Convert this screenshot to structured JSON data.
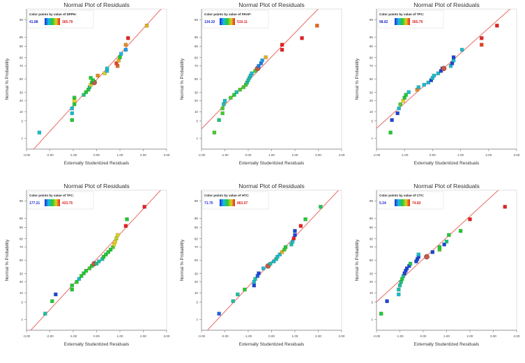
{
  "figure": {
    "panel_count": 6
  },
  "colors": {
    "fit_line": "#e8776f",
    "gradient": [
      "#1f2ad0",
      "#19b8f0",
      "#22c832",
      "#e0d020",
      "#e82020"
    ],
    "legend_min_text": "#1f2ad0",
    "legend_max_text": "#e02020",
    "axis": "#7a7a7a",
    "frame": "#cfcfcf",
    "highlight": "#c45a4a"
  },
  "chart_data": [
    {
      "type": "scatter",
      "title": "Normal Plot of Residuals",
      "xlabel": "Externally Studentized Residuals",
      "ylabel": "Normal % Probability",
      "legend_title": "Color points by value of DPPH:",
      "legend_min": "41.88",
      "legend_max": "365.79",
      "xlim": [
        -3,
        3
      ],
      "xticks": [
        "-3.00",
        "-2.00",
        "-1.00",
        "0.00",
        "1.00",
        "2.00",
        "3.00"
      ],
      "yticks": [
        "1",
        "5",
        "10",
        "20",
        "30",
        "50",
        "70",
        "80",
        "90",
        "95",
        "99"
      ],
      "highlight_index": 13,
      "points": [
        {
          "x": -2.45,
          "y": 1.8,
          "c": 0.3
        },
        {
          "x": -1.05,
          "y": 5.4,
          "c": 0.5
        },
        {
          "x": -1.05,
          "y": 9.0,
          "c": 0.3
        },
        {
          "x": -1.05,
          "y": 12.5,
          "c": 0.3
        },
        {
          "x": -0.95,
          "y": 16.1,
          "c": 0.5
        },
        {
          "x": -0.95,
          "y": 19.7,
          "c": 0.75
        },
        {
          "x": -0.95,
          "y": 23.2,
          "c": 0.5
        },
        {
          "x": -0.55,
          "y": 26.8,
          "c": 0.4
        },
        {
          "x": -0.45,
          "y": 30.4,
          "c": 0.5
        },
        {
          "x": -0.35,
          "y": 33.9,
          "c": 0.5
        },
        {
          "x": -0.3,
          "y": 37.5,
          "c": 0.4
        },
        {
          "x": -0.25,
          "y": 41.1,
          "c": 0.75
        },
        {
          "x": -0.2,
          "y": 44.6,
          "c": 0.5
        },
        {
          "x": -0.1,
          "y": 44.6,
          "c": 0.75
        },
        {
          "x": -0.15,
          "y": 48.2,
          "c": 0.5
        },
        {
          "x": -0.25,
          "y": 51.8,
          "c": 0.5
        },
        {
          "x": 0.05,
          "y": 55.4,
          "c": 0.85
        },
        {
          "x": 0.35,
          "y": 58.9,
          "c": 0.75
        },
        {
          "x": 0.45,
          "y": 62.5,
          "c": 0.3
        },
        {
          "x": 0.45,
          "y": 66.1,
          "c": 0.3
        },
        {
          "x": 0.9,
          "y": 69.6,
          "c": 0.9
        },
        {
          "x": 0.85,
          "y": 73.2,
          "c": 0.95
        },
        {
          "x": 0.95,
          "y": 76.8,
          "c": 0.8
        },
        {
          "x": 1.0,
          "y": 80.4,
          "c": 0.5
        },
        {
          "x": 1.05,
          "y": 83.9,
          "c": 0.25
        },
        {
          "x": 1.25,
          "y": 87.5,
          "c": 0.2
        },
        {
          "x": 1.25,
          "y": 91.1,
          "c": 0.85
        },
        {
          "x": 1.35,
          "y": 94.6,
          "c": 1.0
        },
        {
          "x": 2.15,
          "y": 98.2,
          "c": 0.8
        }
      ]
    },
    {
      "type": "scatter",
      "title": "Normal Plot of Residuals",
      "xlabel": "Externally Studentized Residuals",
      "ylabel": "Normal % Probability",
      "legend_title": "Color points by value of FRAP:",
      "legend_min": "134.32",
      "legend_max": "519.11",
      "xlim": [
        -2,
        4
      ],
      "xticks": [
        "-2.00",
        "-1.00",
        "0.00",
        "1.00",
        "2.00",
        "3.00",
        "4.00"
      ],
      "yticks": [
        "1",
        "5",
        "10",
        "20",
        "30",
        "50",
        "70",
        "80",
        "90",
        "95",
        "99"
      ],
      "highlight_index": 18,
      "points": [
        {
          "x": -1.45,
          "y": 1.8,
          "c": 0.55
        },
        {
          "x": -1.25,
          "y": 5.4,
          "c": 0.4
        },
        {
          "x": -1.1,
          "y": 9.0,
          "c": 0.55
        },
        {
          "x": -1.1,
          "y": 12.5,
          "c": 0.55
        },
        {
          "x": -1.05,
          "y": 16.1,
          "c": 0.35
        },
        {
          "x": -1.0,
          "y": 19.7,
          "c": 0.3
        },
        {
          "x": -0.75,
          "y": 23.2,
          "c": 0.55
        },
        {
          "x": -0.6,
          "y": 26.8,
          "c": 0.5
        },
        {
          "x": -0.5,
          "y": 30.4,
          "c": 0.35
        },
        {
          "x": -0.35,
          "y": 33.9,
          "c": 0.55
        },
        {
          "x": -0.2,
          "y": 37.5,
          "c": 0.55
        },
        {
          "x": -0.1,
          "y": 41.1,
          "c": 0.55
        },
        {
          "x": -0.05,
          "y": 44.6,
          "c": 0.4
        },
        {
          "x": 0.0,
          "y": 48.2,
          "c": 0.35
        },
        {
          "x": 0.05,
          "y": 51.8,
          "c": 0.35
        },
        {
          "x": 0.1,
          "y": 55.4,
          "c": 0.3
        },
        {
          "x": 0.15,
          "y": 58.9,
          "c": 0.3
        },
        {
          "x": 0.3,
          "y": 62.5,
          "c": 0.55
        },
        {
          "x": 0.4,
          "y": 66.1,
          "c": 0.95
        },
        {
          "x": 0.45,
          "y": 69.6,
          "c": 0.15
        },
        {
          "x": 0.55,
          "y": 73.2,
          "c": 0.15
        },
        {
          "x": 0.6,
          "y": 76.8,
          "c": 0.2
        },
        {
          "x": 0.75,
          "y": 80.4,
          "c": 0.8
        },
        {
          "x": 1.45,
          "y": 87.5,
          "c": 1.0
        },
        {
          "x": 1.45,
          "y": 91.1,
          "c": 1.0
        },
        {
          "x": 2.3,
          "y": 94.6,
          "c": 1.0
        },
        {
          "x": 2.95,
          "y": 98.2,
          "c": 0.9
        }
      ]
    },
    {
      "type": "scatter",
      "title": "Normal Plot of Residuals",
      "xlabel": "Externally Studentized Residuals",
      "ylabel": "Normal % Probability",
      "legend_title": "Color points by value of TPC:",
      "legend_min": "98.82",
      "legend_max": "365.79",
      "xlim": [
        -2,
        3
      ],
      "xticks": [
        "-2.00",
        "-1.00",
        "0.00",
        "1.00",
        "2.00",
        "3.00"
      ],
      "yticks": [
        "1",
        "5",
        "10",
        "20",
        "30",
        "50",
        "70",
        "80",
        "90",
        "95",
        "99"
      ],
      "highlight_index": 19,
      "points": [
        {
          "x": -1.5,
          "y": 1.8,
          "c": 0.5
        },
        {
          "x": -1.45,
          "y": 5.4,
          "c": 0.05
        },
        {
          "x": -1.25,
          "y": 9.0,
          "c": 0.05
        },
        {
          "x": -1.2,
          "y": 12.5,
          "c": 0.3
        },
        {
          "x": -1.15,
          "y": 16.1,
          "c": 0.55
        },
        {
          "x": -1.05,
          "y": 19.7,
          "c": 0.75
        },
        {
          "x": -1.0,
          "y": 23.2,
          "c": 0.5
        },
        {
          "x": -0.95,
          "y": 26.8,
          "c": 0.5
        },
        {
          "x": -0.85,
          "y": 30.4,
          "c": 0.3
        },
        {
          "x": -0.55,
          "y": 33.9,
          "c": 0.85
        },
        {
          "x": -0.5,
          "y": 37.5,
          "c": 0.3
        },
        {
          "x": -0.3,
          "y": 41.1,
          "c": 0.3
        },
        {
          "x": -0.15,
          "y": 44.6,
          "c": 0.3
        },
        {
          "x": -0.05,
          "y": 48.2,
          "c": 0.05
        },
        {
          "x": 0.0,
          "y": 51.8,
          "c": 0.3
        },
        {
          "x": 0.05,
          "y": 55.4,
          "c": 0.3
        },
        {
          "x": 0.2,
          "y": 58.9,
          "c": 0.3
        },
        {
          "x": 0.3,
          "y": 62.5,
          "c": 0.05
        },
        {
          "x": 0.35,
          "y": 66.1,
          "c": 0.05
        },
        {
          "x": 0.4,
          "y": 66.1,
          "c": 0.95
        },
        {
          "x": 0.65,
          "y": 69.6,
          "c": 0.3
        },
        {
          "x": 0.7,
          "y": 73.2,
          "c": 0.05
        },
        {
          "x": 0.75,
          "y": 76.8,
          "c": 0.3
        },
        {
          "x": 0.75,
          "y": 80.4,
          "c": 0.05
        },
        {
          "x": 1.05,
          "y": 87.5,
          "c": 0.3
        },
        {
          "x": 1.75,
          "y": 91.1,
          "c": 0.95
        },
        {
          "x": 1.75,
          "y": 94.6,
          "c": 1.0
        },
        {
          "x": 2.3,
          "y": 98.2,
          "c": 1.0
        }
      ]
    },
    {
      "type": "scatter",
      "title": "Normal Plot of Residuals",
      "xlabel": "Externally Studentized Residuals",
      "ylabel": "Normal % Probability",
      "legend_title": "Color points by value of TFC:",
      "legend_min": "177.21",
      "legend_max": "433.75",
      "xlim": [
        -3,
        3
      ],
      "xticks": [
        "-3.00",
        "-2.00",
        "-1.00",
        "0.00",
        "1.00",
        "2.00",
        "3.00"
      ],
      "yticks": [
        "1",
        "5",
        "10",
        "20",
        "30",
        "50",
        "70",
        "80",
        "90",
        "95",
        "99"
      ],
      "highlight_index": 12,
      "points": [
        {
          "x": -2.2,
          "y": 1.8,
          "c": 0.35
        },
        {
          "x": -1.9,
          "y": 5.4,
          "c": 0.5
        },
        {
          "x": -1.75,
          "y": 9.0,
          "c": 0.05
        },
        {
          "x": -1.05,
          "y": 12.5,
          "c": 0.5
        },
        {
          "x": -1.05,
          "y": 16.1,
          "c": 0.5
        },
        {
          "x": -0.85,
          "y": 19.7,
          "c": 0.5
        },
        {
          "x": -0.75,
          "y": 23.2,
          "c": 0.3
        },
        {
          "x": -0.65,
          "y": 26.8,
          "c": 0.5
        },
        {
          "x": -0.55,
          "y": 30.4,
          "c": 0.5
        },
        {
          "x": -0.45,
          "y": 33.9,
          "c": 0.5
        },
        {
          "x": -0.3,
          "y": 37.5,
          "c": 0.55
        },
        {
          "x": -0.2,
          "y": 41.1,
          "c": 0.5
        },
        {
          "x": -0.1,
          "y": 44.6,
          "c": 0.95
        },
        {
          "x": 0.0,
          "y": 44.6,
          "c": 0.4
        },
        {
          "x": 0.1,
          "y": 48.2,
          "c": 0.35
        },
        {
          "x": 0.25,
          "y": 51.8,
          "c": 0.35
        },
        {
          "x": 0.3,
          "y": 55.4,
          "c": 0.5
        },
        {
          "x": 0.4,
          "y": 58.9,
          "c": 0.5
        },
        {
          "x": 0.5,
          "y": 62.5,
          "c": 0.5
        },
        {
          "x": 0.6,
          "y": 66.1,
          "c": 0.5
        },
        {
          "x": 0.7,
          "y": 69.6,
          "c": 0.55
        },
        {
          "x": 0.75,
          "y": 73.2,
          "c": 0.75
        },
        {
          "x": 0.8,
          "y": 76.8,
          "c": 0.75
        },
        {
          "x": 0.85,
          "y": 80.4,
          "c": 0.7
        },
        {
          "x": 0.9,
          "y": 83.9,
          "c": 0.75
        },
        {
          "x": 1.25,
          "y": 91.1,
          "c": 1.0
        },
        {
          "x": 1.3,
          "y": 94.6,
          "c": 0.5
        },
        {
          "x": 2.05,
          "y": 98.2,
          "c": 1.0
        }
      ]
    },
    {
      "type": "scatter",
      "title": "Normal Plot of Residuals",
      "xlabel": "Externally Studentized Residuals",
      "ylabel": "Normal % Probability",
      "legend_title": "Color points by value of HTC:",
      "legend_min": "71.75",
      "legend_max": "863.07",
      "xlim": [
        -3,
        3
      ],
      "xticks": [
        "-3.00",
        "-2.00",
        "-1.00",
        "0.00",
        "1.00",
        "2.00",
        "3.00"
      ],
      "yticks": [
        "1",
        "5",
        "10",
        "20",
        "30",
        "50",
        "70",
        "80",
        "90",
        "95",
        "99"
      ],
      "highlight_index": 9,
      "points": [
        {
          "x": -2.25,
          "y": 1.8,
          "c": 0.1
        },
        {
          "x": -1.65,
          "y": 5.4,
          "c": 0.35
        },
        {
          "x": -1.45,
          "y": 9.0,
          "c": 0.35
        },
        {
          "x": -1.15,
          "y": 12.5,
          "c": 0.5
        },
        {
          "x": -0.75,
          "y": 16.1,
          "c": 0.05
        },
        {
          "x": -0.75,
          "y": 19.7,
          "c": 0.3
        },
        {
          "x": -0.7,
          "y": 23.2,
          "c": 0.35
        },
        {
          "x": -0.6,
          "y": 26.8,
          "c": 0.1
        },
        {
          "x": -0.55,
          "y": 30.4,
          "c": 0.05
        },
        {
          "x": -0.15,
          "y": 41.1,
          "c": 0.95
        },
        {
          "x": -0.35,
          "y": 37.5,
          "c": 0.3
        },
        {
          "x": -0.05,
          "y": 44.6,
          "c": 0.35
        },
        {
          "x": 0.1,
          "y": 48.2,
          "c": 0.3
        },
        {
          "x": 0.2,
          "y": 51.8,
          "c": 0.35
        },
        {
          "x": 0.25,
          "y": 55.4,
          "c": 0.3
        },
        {
          "x": 0.35,
          "y": 58.9,
          "c": 0.3
        },
        {
          "x": 0.45,
          "y": 62.5,
          "c": 0.8
        },
        {
          "x": 0.55,
          "y": 66.1,
          "c": 0.55
        },
        {
          "x": 0.6,
          "y": 69.6,
          "c": 0.5
        },
        {
          "x": 0.85,
          "y": 73.2,
          "c": 0.35
        },
        {
          "x": 0.9,
          "y": 76.8,
          "c": 0.3
        },
        {
          "x": 0.95,
          "y": 80.4,
          "c": 1.0
        },
        {
          "x": 1.0,
          "y": 83.9,
          "c": 0.05
        },
        {
          "x": 1.0,
          "y": 87.5,
          "c": 0.05
        },
        {
          "x": 1.25,
          "y": 91.1,
          "c": 1.0
        },
        {
          "x": 1.45,
          "y": 94.6,
          "c": 0.5
        },
        {
          "x": 2.1,
          "y": 98.2,
          "c": 0.45
        }
      ]
    },
    {
      "type": "scatter",
      "title": "Normal Plot of Residuals",
      "xlabel": "Externally Studentized Residuals",
      "ylabel": "Normal % Probability",
      "legend_title": "Color points by value of CTC:",
      "legend_min": "5.34",
      "legend_max": "74.82",
      "xlim": [
        -2,
        4
      ],
      "xticks": [
        "-2.00",
        "-1.00",
        "0.00",
        "1.00",
        "2.00",
        "3.00",
        "4.00"
      ],
      "yticks": [
        "1",
        "5",
        "10",
        "20",
        "30",
        "50",
        "70",
        "80",
        "90",
        "95",
        "99"
      ],
      "highlight_index": 17,
      "points": [
        {
          "x": -1.8,
          "y": 1.8,
          "c": 0.5
        },
        {
          "x": -1.55,
          "y": 5.4,
          "c": 0.05
        },
        {
          "x": -1.05,
          "y": 9.0,
          "c": 0.3
        },
        {
          "x": -1.05,
          "y": 12.5,
          "c": 0.35
        },
        {
          "x": -1.0,
          "y": 16.1,
          "c": 0.35
        },
        {
          "x": -0.95,
          "y": 19.7,
          "c": 0.4
        },
        {
          "x": -0.9,
          "y": 23.2,
          "c": 0.5
        },
        {
          "x": -0.85,
          "y": 26.8,
          "c": 0.35
        },
        {
          "x": -0.8,
          "y": 30.4,
          "c": 0.05
        },
        {
          "x": -0.75,
          "y": 33.9,
          "c": 0.05
        },
        {
          "x": -0.7,
          "y": 37.5,
          "c": 0.05
        },
        {
          "x": -0.6,
          "y": 41.1,
          "c": 0.05
        },
        {
          "x": -0.55,
          "y": 44.6,
          "c": 0.45
        },
        {
          "x": -0.3,
          "y": 48.2,
          "c": 0.05
        },
        {
          "x": -0.25,
          "y": 51.8,
          "c": 0.05
        },
        {
          "x": -0.2,
          "y": 55.4,
          "c": 0.05
        },
        {
          "x": -0.2,
          "y": 58.9,
          "c": 0.3
        },
        {
          "x": 0.15,
          "y": 55.4,
          "c": 0.95
        },
        {
          "x": 0.4,
          "y": 62.5,
          "c": 0.05
        },
        {
          "x": 0.7,
          "y": 66.1,
          "c": 0.55
        },
        {
          "x": 0.7,
          "y": 69.6,
          "c": 0.5
        },
        {
          "x": 0.9,
          "y": 73.2,
          "c": 0.05
        },
        {
          "x": 1.0,
          "y": 76.8,
          "c": 0.4
        },
        {
          "x": 1.1,
          "y": 83.9,
          "c": 0.5
        },
        {
          "x": 1.6,
          "y": 87.5,
          "c": 0.5
        },
        {
          "x": 2.0,
          "y": 94.6,
          "c": 1.0
        },
        {
          "x": 3.5,
          "y": 98.2,
          "c": 1.0
        }
      ]
    }
  ]
}
